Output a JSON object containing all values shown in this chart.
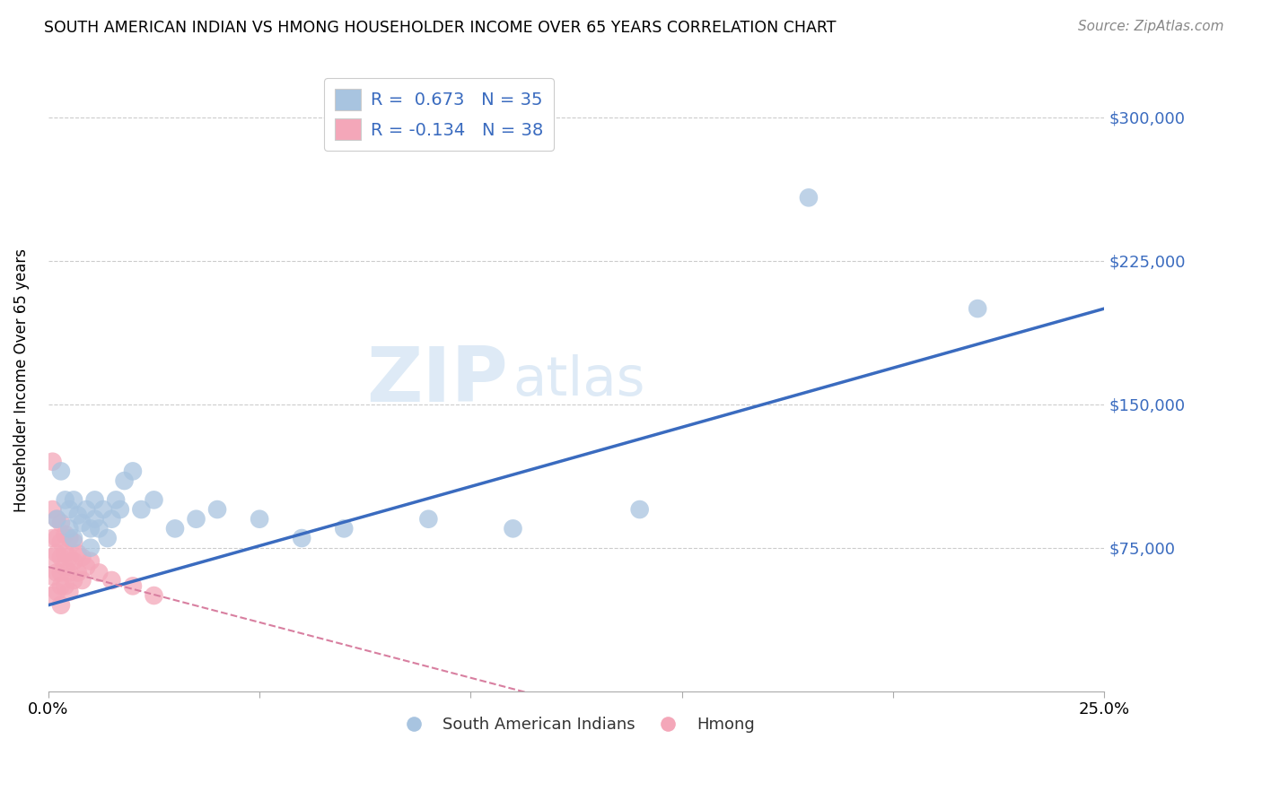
{
  "title": "SOUTH AMERICAN INDIAN VS HMONG HOUSEHOLDER INCOME OVER 65 YEARS CORRELATION CHART",
  "source": "Source: ZipAtlas.com",
  "ylabel": "Householder Income Over 65 years",
  "xlim": [
    0.0,
    0.25
  ],
  "ylim": [
    0,
    325000
  ],
  "yticks": [
    75000,
    150000,
    225000,
    300000
  ],
  "ytick_labels": [
    "$75,000",
    "$150,000",
    "$225,000",
    "$300,000"
  ],
  "xticks": [
    0.0,
    0.05,
    0.1,
    0.15,
    0.2,
    0.25
  ],
  "xtick_labels": [
    "0.0%",
    "",
    "",
    "",
    "",
    "25.0%"
  ],
  "blue_R": 0.673,
  "blue_N": 35,
  "pink_R": -0.134,
  "pink_N": 38,
  "blue_color": "#a8c4e0",
  "pink_color": "#f4a7b9",
  "blue_line_color": "#3a6bbf",
  "pink_line_color": "#d87fa0",
  "blue_scatter_x": [
    0.002,
    0.003,
    0.004,
    0.005,
    0.005,
    0.006,
    0.006,
    0.007,
    0.008,
    0.009,
    0.01,
    0.01,
    0.011,
    0.011,
    0.012,
    0.013,
    0.014,
    0.015,
    0.016,
    0.017,
    0.018,
    0.02,
    0.022,
    0.025,
    0.03,
    0.035,
    0.04,
    0.05,
    0.06,
    0.07,
    0.09,
    0.11,
    0.14,
    0.18,
    0.22
  ],
  "blue_scatter_y": [
    90000,
    115000,
    100000,
    95000,
    85000,
    80000,
    100000,
    92000,
    88000,
    95000,
    85000,
    75000,
    100000,
    90000,
    85000,
    95000,
    80000,
    90000,
    100000,
    95000,
    110000,
    115000,
    95000,
    100000,
    85000,
    90000,
    95000,
    90000,
    80000,
    85000,
    90000,
    85000,
    95000,
    258000,
    200000
  ],
  "pink_scatter_x": [
    0.001,
    0.001,
    0.001,
    0.001,
    0.001,
    0.001,
    0.002,
    0.002,
    0.002,
    0.002,
    0.002,
    0.003,
    0.003,
    0.003,
    0.003,
    0.003,
    0.003,
    0.004,
    0.004,
    0.004,
    0.004,
    0.005,
    0.005,
    0.005,
    0.005,
    0.006,
    0.006,
    0.006,
    0.007,
    0.007,
    0.008,
    0.008,
    0.009,
    0.01,
    0.012,
    0.015,
    0.02,
    0.025
  ],
  "pink_scatter_y": [
    120000,
    95000,
    80000,
    70000,
    60000,
    50000,
    90000,
    80000,
    72000,
    62000,
    52000,
    88000,
    78000,
    70000,
    62000,
    55000,
    45000,
    82000,
    72000,
    65000,
    55000,
    80000,
    70000,
    62000,
    52000,
    78000,
    68000,
    58000,
    72000,
    62000,
    70000,
    58000,
    65000,
    68000,
    62000,
    58000,
    55000,
    50000
  ],
  "watermark_zip": "ZIP",
  "watermark_atlas": "atlas",
  "background_color": "#ffffff",
  "grid_color": "#cccccc"
}
